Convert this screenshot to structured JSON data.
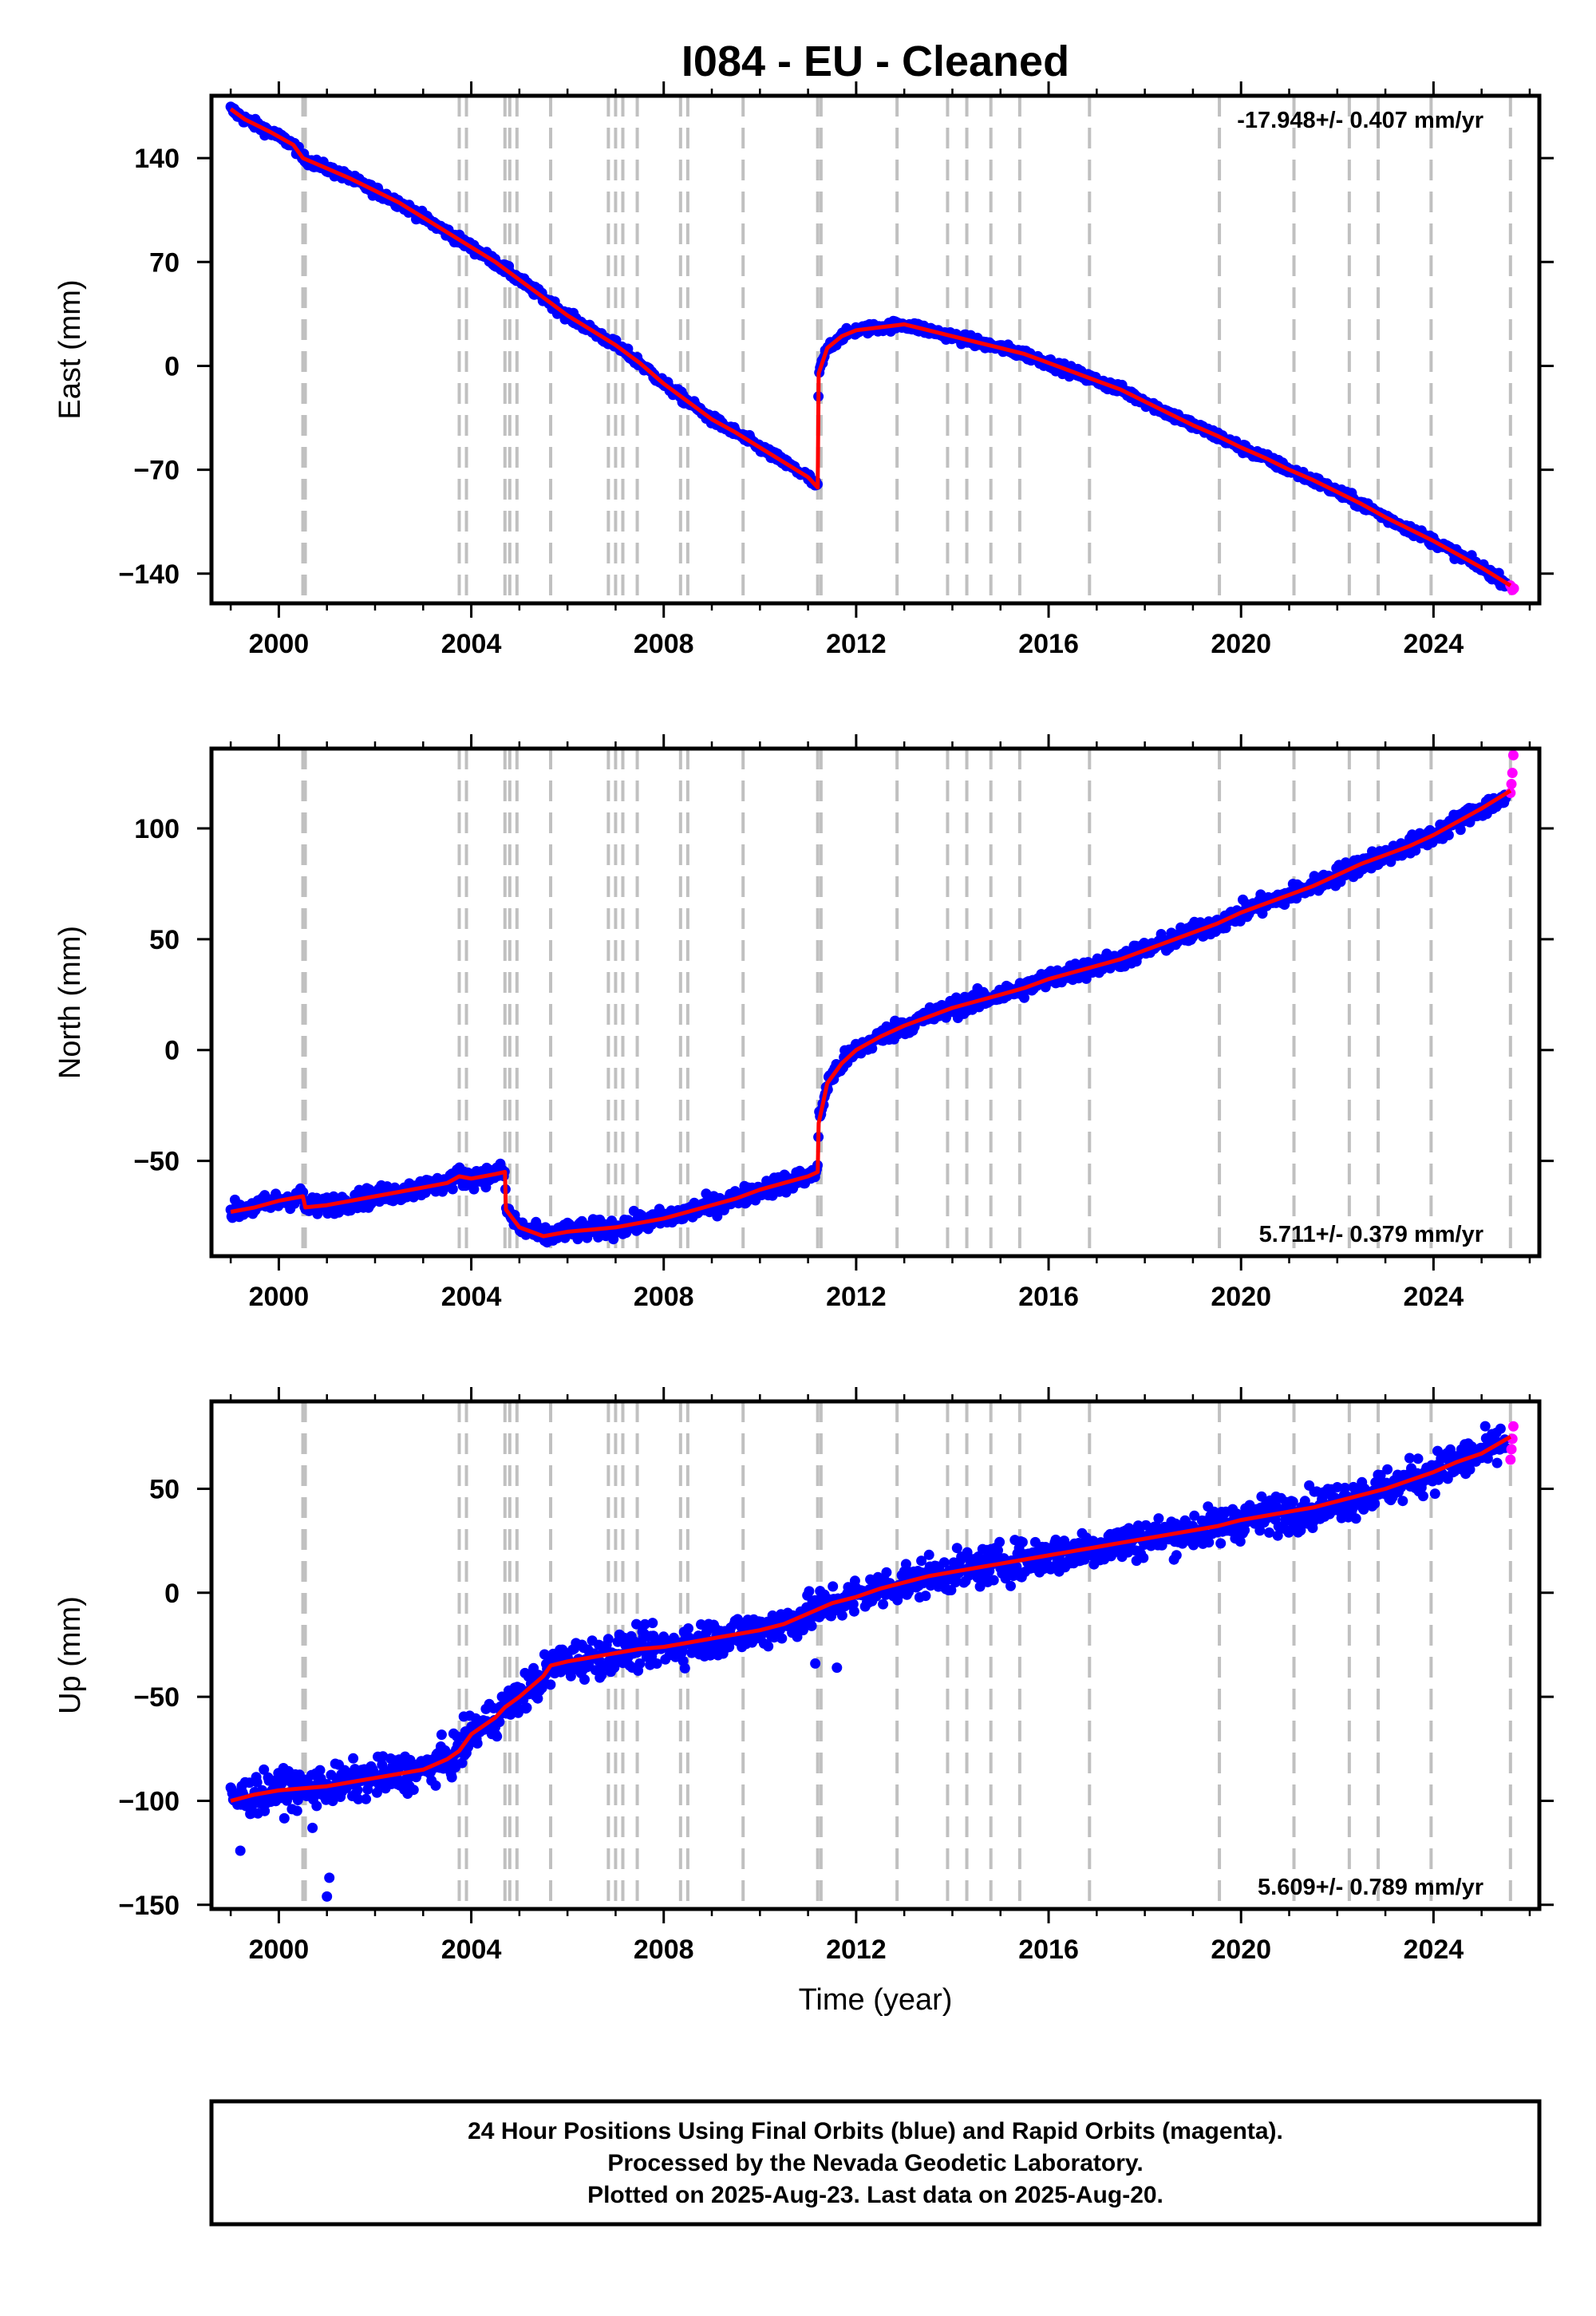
{
  "chart_data": {
    "type": "scatter",
    "title": "I084  - EU - Cleaned",
    "xlabel": "Time (year)",
    "xlim": [
      1998.6,
      2026.2
    ],
    "xticks": [
      2000,
      2004,
      2008,
      2012,
      2016,
      2020,
      2024
    ],
    "xtick_labels": [
      "2000",
      "2004",
      "2008",
      "2012",
      "2016",
      "2020",
      "2024"
    ],
    "colors": {
      "final": "#0000ff",
      "rapid": "#ff00ff",
      "model": "#ff0000",
      "event_lines": "#c0c0c0"
    },
    "event_lines": [
      2000.5,
      2000.55,
      2003.75,
      2003.9,
      2004.7,
      2004.8,
      2004.95,
      2005.65,
      2006.85,
      2007.0,
      2007.15,
      2007.45,
      2008.35,
      2008.5,
      2009.65,
      2011.2,
      2011.27,
      2012.85,
      2013.9,
      2014.3,
      2014.8,
      2015.4,
      2016.85,
      2019.55,
      2021.1,
      2022.25,
      2022.85,
      2023.95,
      2025.6
    ],
    "panels": [
      {
        "ylabel": "East (mm)",
        "ylim": [
          -160,
          182
        ],
        "yticks": [
          -140,
          -70,
          0,
          70,
          140
        ],
        "ytick_labels": [
          "−140",
          "−70",
          "0",
          "70",
          "140"
        ],
        "rate_label": "-17.948+/- 0.407 mm/yr",
        "rate_position": "top-right",
        "noise": 2.3,
        "series": [
          {
            "name": "Final Orbits",
            "x": [
              1999.0,
              1999.3,
              1999.8,
              2000.3,
              2000.5,
              2001.0,
              2001.5,
              2002.0,
              2002.5,
              2003.0,
              2003.5,
              2004.0,
              2004.5,
              2005.0,
              2005.5,
              2006.0,
              2006.5,
              2007.0,
              2007.5,
              2008.0,
              2008.5,
              2009.0,
              2009.5,
              2010.0,
              2010.5,
              2011.0,
              2011.2,
              2011.22,
              2011.4,
              2011.7,
              2012.0,
              2012.5,
              2013.0,
              2013.5,
              2014.0,
              2014.5,
              2015.0,
              2015.5,
              2016.0,
              2016.5,
              2017.0,
              2017.5,
              2018.0,
              2018.5,
              2019.0,
              2019.5,
              2020.0,
              2020.5,
              2021.0,
              2021.5,
              2022.0,
              2022.5,
              2023.0,
              2023.5,
              2024.0,
              2024.5,
              2025.0,
              2025.5
            ],
            "y": [
              173,
              166,
              158,
              149,
              140,
              133,
              126,
              118,
              110,
              100,
              90,
              80,
              70,
              58,
              46,
              34,
              24,
              14,
              2,
              -12,
              -24,
              -36,
              -45,
              -55,
              -65,
              -75,
              -82,
              -5,
              12,
              20,
              24,
              26,
              28,
              24,
              20,
              16,
              12,
              8,
              2,
              -4,
              -10,
              -16,
              -24,
              -32,
              -40,
              -47,
              -55,
              -62,
              -70,
              -77,
              -85,
              -93,
              -102,
              -110,
              -118,
              -127,
              -136,
              -146
            ]
          },
          {
            "name": "Rapid Orbits",
            "x": [
              2025.6,
              2025.64,
              2025.67
            ],
            "y": [
              -148,
              -151,
              -150
            ]
          }
        ],
        "model_line": {
          "x": [
            1999.0,
            1999.3,
            1999.8,
            2000.3,
            2000.5,
            2001.0,
            2001.5,
            2002.0,
            2002.5,
            2003.0,
            2003.5,
            2004.0,
            2004.5,
            2005.0,
            2005.5,
            2006.0,
            2006.5,
            2007.0,
            2007.5,
            2008.0,
            2008.5,
            2009.0,
            2009.5,
            2010.0,
            2010.5,
            2011.0,
            2011.2,
            2011.22,
            2011.4,
            2011.7,
            2012.0,
            2012.5,
            2013.0,
            2013.5,
            2014.0,
            2014.5,
            2015.0,
            2015.5,
            2016.0,
            2016.5,
            2017.0,
            2017.5,
            2018.0,
            2018.5,
            2019.0,
            2019.5,
            2020.0,
            2020.5,
            2021.0,
            2021.5,
            2022.0,
            2022.5,
            2023.0,
            2023.5,
            2024.0,
            2024.5,
            2025.0,
            2025.6
          ],
          "y": [
            173,
            166,
            158,
            149,
            140,
            133,
            126,
            118,
            110,
            100,
            90,
            80,
            70,
            58,
            46,
            34,
            24,
            14,
            2,
            -12,
            -24,
            -36,
            -45,
            -55,
            -65,
            -75,
            -82,
            -5,
            12,
            20,
            24,
            26,
            28,
            24,
            20,
            16,
            12,
            8,
            2,
            -4,
            -10,
            -16,
            -24,
            -32,
            -40,
            -47,
            -55,
            -62,
            -70,
            -77,
            -85,
            -93,
            -102,
            -110,
            -118,
            -127,
            -136,
            -148
          ]
        }
      },
      {
        "ylabel": "North (mm)",
        "ylim": [
          -93,
          136
        ],
        "yticks": [
          -50,
          0,
          50,
          100
        ],
        "ytick_labels": [
          "−50",
          "0",
          "50",
          "100"
        ],
        "rate_label": "5.711+/- 0.379 mm/yr",
        "rate_position": "bottom-right",
        "noise": 3.0,
        "series": [
          {
            "name": "Final Orbits",
            "x": [
              1999.0,
              1999.5,
              2000.0,
              2000.5,
              2000.55,
              2001.0,
              2001.5,
              2002.0,
              2002.5,
              2003.0,
              2003.5,
              2003.75,
              2004.0,
              2004.5,
              2004.7,
              2004.72,
              2005.0,
              2005.5,
              2006.0,
              2006.5,
              2007.0,
              2007.5,
              2008.0,
              2008.5,
              2009.0,
              2009.5,
              2010.0,
              2010.5,
              2011.0,
              2011.2,
              2011.22,
              2011.4,
              2011.7,
              2012.0,
              2012.5,
              2013.0,
              2013.5,
              2014.0,
              2014.5,
              2015.0,
              2015.5,
              2016.0,
              2016.5,
              2017.0,
              2017.5,
              2018.0,
              2018.5,
              2019.0,
              2019.5,
              2020.0,
              2020.5,
              2021.0,
              2021.5,
              2022.0,
              2022.5,
              2023.0,
              2023.5,
              2024.0,
              2024.5,
              2025.0,
              2025.5
            ],
            "y": [
              -73,
              -71,
              -68,
              -66,
              -71,
              -70,
              -68,
              -66,
              -64,
              -62,
              -60,
              -57,
              -58,
              -56,
              -55,
              -72,
              -80,
              -84,
              -82,
              -81,
              -80,
              -78,
              -76,
              -73,
              -70,
              -67,
              -63,
              -60,
              -57,
              -55,
              -33,
              -15,
              -6,
              0,
              6,
              11,
              15,
              19,
              22,
              25,
              28,
              32,
              35,
              38,
              41,
              45,
              49,
              53,
              57,
              62,
              66,
              70,
              74,
              79,
              84,
              88,
              92,
              97,
              103,
              109,
              113
            ]
          },
          {
            "name": "Rapid Orbits",
            "x": [
              2025.6,
              2025.62,
              2025.64,
              2025.66
            ],
            "y": [
              116,
              120,
              125,
              133
            ]
          }
        ],
        "model_line": {
          "x": [
            1999.0,
            1999.5,
            2000.0,
            2000.5,
            2000.55,
            2001.0,
            2001.5,
            2002.0,
            2002.5,
            2003.0,
            2003.5,
            2003.75,
            2004.0,
            2004.5,
            2004.7,
            2004.72,
            2005.0,
            2005.5,
            2006.0,
            2006.5,
            2007.0,
            2007.5,
            2008.0,
            2008.5,
            2009.0,
            2009.5,
            2010.0,
            2010.5,
            2011.0,
            2011.2,
            2011.22,
            2011.4,
            2011.7,
            2012.0,
            2012.5,
            2013.0,
            2013.5,
            2014.0,
            2014.5,
            2015.0,
            2015.5,
            2016.0,
            2016.5,
            2017.0,
            2017.5,
            2018.0,
            2018.5,
            2019.0,
            2019.5,
            2020.0,
            2020.5,
            2021.0,
            2021.5,
            2022.0,
            2022.5,
            2023.0,
            2023.5,
            2024.0,
            2024.5,
            2025.0,
            2025.6
          ],
          "y": [
            -73,
            -71,
            -68,
            -66,
            -71,
            -70,
            -68,
            -66,
            -64,
            -62,
            -60,
            -57,
            -58,
            -56,
            -55,
            -72,
            -80,
            -84,
            -82,
            -81,
            -80,
            -78,
            -76,
            -73,
            -70,
            -67,
            -63,
            -60,
            -57,
            -55,
            -33,
            -15,
            -6,
            0,
            6,
            11,
            15,
            19,
            22,
            25,
            28,
            32,
            35,
            38,
            41,
            45,
            49,
            53,
            57,
            62,
            66,
            70,
            74,
            79,
            84,
            88,
            92,
            97,
            103,
            109,
            117
          ]
        }
      },
      {
        "ylabel": "Up (mm)",
        "ylim": [
          -152,
          92
        ],
        "yticks": [
          -150,
          -100,
          -50,
          0,
          50
        ],
        "ytick_labels": [
          "−150",
          "−100",
          "−50",
          "0",
          "50"
        ],
        "rate_label": "5.609+/- 0.789 mm/yr",
        "rate_position": "bottom-right",
        "noise": 6.5,
        "series": [
          {
            "name": "Final Orbits",
            "x": [
              1999.0,
              1999.5,
              2000.0,
              2000.5,
              2001.0,
              2001.5,
              2002.0,
              2002.5,
              2003.0,
              2003.5,
              2003.75,
              2004.0,
              2004.5,
              2004.7,
              2005.0,
              2005.5,
              2005.65,
              2006.0,
              2006.5,
              2007.0,
              2007.5,
              2008.0,
              2008.5,
              2009.0,
              2009.5,
              2010.0,
              2010.5,
              2011.0,
              2011.2,
              2011.5,
              2012.0,
              2012.5,
              2013.0,
              2013.5,
              2014.0,
              2014.5,
              2015.0,
              2015.5,
              2016.0,
              2016.5,
              2017.0,
              2017.5,
              2018.0,
              2018.5,
              2019.0,
              2019.5,
              2020.0,
              2020.5,
              2021.0,
              2021.5,
              2022.0,
              2022.5,
              2023.0,
              2023.5,
              2024.0,
              2024.5,
              2025.0,
              2025.5
            ],
            "y": [
              -100,
              -97,
              -95,
              -94,
              -93,
              -91,
              -89,
              -87,
              -85,
              -80,
              -76,
              -68,
              -60,
              -55,
              -50,
              -40,
              -35,
              -33,
              -31,
              -29,
              -27,
              -26,
              -24,
              -22,
              -20,
              -18,
              -15,
              -10,
              -8,
              -5,
              -2,
              2,
              5,
              8,
              10,
              12,
              14,
              16,
              18,
              20,
              22,
              24,
              26,
              28,
              30,
              32,
              35,
              37,
              39,
              41,
              44,
              47,
              50,
              54,
              58,
              63,
              67,
              72
            ]
          },
          {
            "name": "Rapid Orbits",
            "x": [
              2025.6,
              2025.62,
              2025.64,
              2025.66
            ],
            "y": [
              64,
              69,
              74,
              80
            ]
          }
        ],
        "outliers": {
          "x": [
            2001.0,
            2000.7,
            2001.05,
            1999.2,
            2011.6,
            2011.15
          ],
          "y": [
            -146,
            -113,
            -137,
            -124,
            -36,
            -34
          ]
        },
        "model_line": {
          "x": [
            1999.0,
            1999.5,
            2000.0,
            2000.5,
            2001.0,
            2001.5,
            2002.0,
            2002.5,
            2003.0,
            2003.5,
            2003.75,
            2004.0,
            2004.5,
            2004.7,
            2005.0,
            2005.5,
            2005.65,
            2006.0,
            2006.5,
            2007.0,
            2007.5,
            2008.0,
            2008.5,
            2009.0,
            2009.5,
            2010.0,
            2010.5,
            2011.0,
            2011.2,
            2011.5,
            2012.0,
            2012.5,
            2013.0,
            2013.5,
            2014.0,
            2014.5,
            2015.0,
            2015.5,
            2016.0,
            2016.5,
            2017.0,
            2017.5,
            2018.0,
            2018.5,
            2019.0,
            2019.5,
            2020.0,
            2020.5,
            2021.0,
            2021.5,
            2022.0,
            2022.5,
            2023.0,
            2023.5,
            2024.0,
            2024.5,
            2025.0,
            2025.6
          ],
          "y": [
            -100,
            -97,
            -95,
            -94,
            -93,
            -91,
            -89,
            -87,
            -85,
            -80,
            -76,
            -68,
            -60,
            -55,
            -50,
            -40,
            -35,
            -33,
            -31,
            -29,
            -27,
            -26,
            -24,
            -22,
            -20,
            -18,
            -15,
            -10,
            -8,
            -5,
            -2,
            2,
            5,
            8,
            10,
            12,
            14,
            16,
            18,
            20,
            22,
            24,
            26,
            28,
            30,
            32,
            35,
            37,
            39,
            41,
            44,
            47,
            50,
            54,
            58,
            63,
            67,
            75
          ]
        }
      }
    ],
    "footer_lines": [
      "24 Hour Positions Using Final Orbits (blue) and Rapid Orbits (magenta).",
      "Processed by the Nevada Geodetic Laboratory.",
      "Plotted on 2025-Aug-23. Last data on 2025-Aug-20."
    ]
  }
}
